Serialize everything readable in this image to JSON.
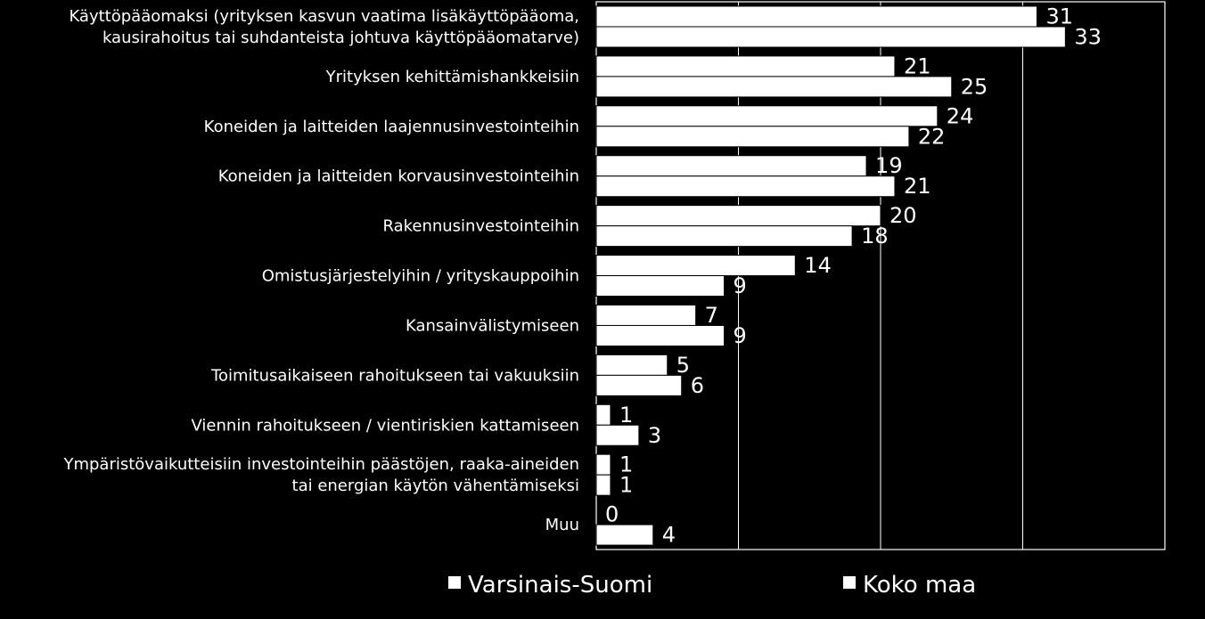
{
  "colors": {
    "background": "#000000",
    "bar_fill": "#ffffff",
    "bar_stroke": "#000000",
    "gridline": "#ffffff",
    "text": "#ffffff"
  },
  "chart_data": {
    "type": "bar",
    "orientation": "horizontal",
    "categories": [
      [
        "Käyttöpääomaksi (yrityksen kasvun vaatima lisäkäyttöpääoma,",
        "kausirahoitus tai suhdanteista johtuva käyttöpääomatarve)"
      ],
      [
        "Yrityksen kehittämishankkeisiin"
      ],
      [
        "Koneiden ja laitteiden laajennusinvestointeihin"
      ],
      [
        "Koneiden ja laitteiden korvausinvestointeihin"
      ],
      [
        "Rakennusinvestointeihin"
      ],
      [
        "Omistusjärjestelyihin / yrityskauppoihin"
      ],
      [
        "Kansainvälistymiseen"
      ],
      [
        "Toimitusaikaiseen rahoitukseen tai vakuuksiin"
      ],
      [
        "Viennin rahoitukseen / vientiriskien kattamiseen"
      ],
      [
        "Ympäristövaikutteisiin investointeihin päästöjen, raaka-aineiden",
        "tai energian käytön vähentämiseksi"
      ],
      [
        "Muu"
      ]
    ],
    "series": [
      {
        "name": "Varsinais-Suomi",
        "values": [
          31,
          21,
          24,
          19,
          20,
          14,
          7,
          5,
          1,
          1,
          0
        ]
      },
      {
        "name": "Koko maa",
        "values": [
          33,
          25,
          22,
          21,
          18,
          9,
          9,
          6,
          3,
          1,
          4
        ]
      }
    ],
    "xlim": [
      0,
      40
    ],
    "gridlines": [
      10,
      20,
      30
    ],
    "grid": true,
    "legend_position": "bottom"
  }
}
